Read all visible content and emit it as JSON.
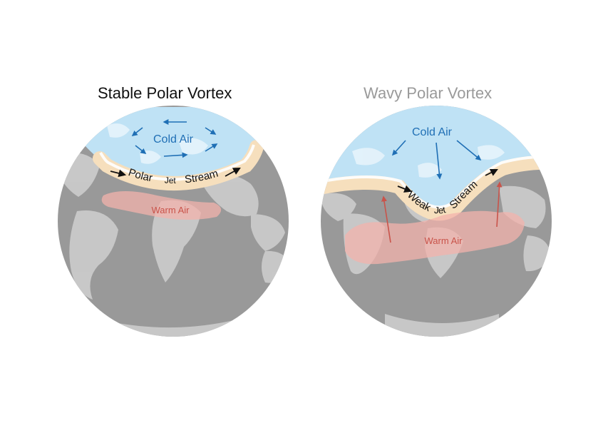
{
  "panels": {
    "stable": {
      "title": "Stable Polar Vortex",
      "cold_label": "Cold Air",
      "warm_label": "Warm Air",
      "jet_words": [
        "Polar",
        "Jet",
        "Stream"
      ]
    },
    "wavy": {
      "title": "Wavy Polar Vortex",
      "cold_label": "Cold Air",
      "warm_label": "Warm Air",
      "jet_words": [
        "Weak",
        "Jet",
        "Stream"
      ]
    }
  },
  "colors": {
    "globe_ocean": "#999999",
    "land": "#cdcdcd",
    "cold_air": "#bfe2f5",
    "cold_text": "#1f6fb5",
    "warm_air": "#f3b3ac",
    "warm_text": "#c9534a",
    "jet_band": "#f6dfbd",
    "arrow_red": "#c9534a",
    "title_active": "#111111",
    "title_muted": "#9a9a9a"
  }
}
